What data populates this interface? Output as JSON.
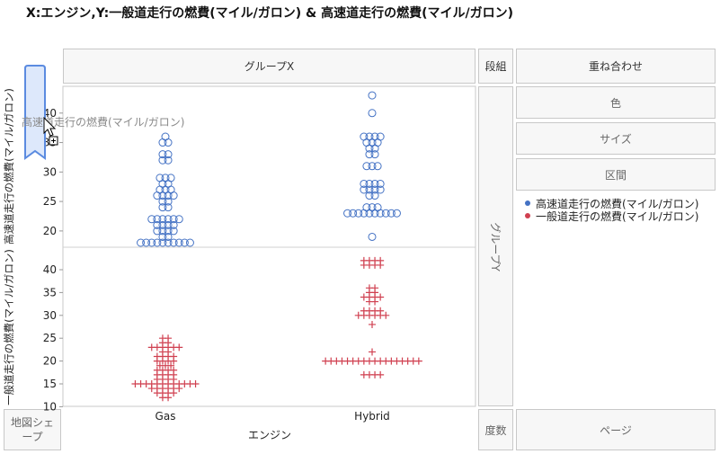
{
  "title": "X:エンジン,Y:一般道走行の燃費(マイル/ガロン) & 高速道走行の燃費(マイル/ガロン)",
  "zones": {
    "group_x": "グループX",
    "wrap": "段組",
    "overlay": "重ね合わせ",
    "color": "色",
    "size": "サイズ",
    "interval": "区間",
    "group_y": "グループY",
    "map_shape": "地図シェープ",
    "freq": "度数",
    "page": "ページ"
  },
  "drag_hint": "高速道走行の燃費(マイル/ガロン)",
  "legend": [
    {
      "label": "高速道走行の燃費(マイル/ガロン)",
      "color": "#4472c4"
    },
    {
      "label": "一般道走行の燃費(マイル/ガロン)",
      "color": "#d04050"
    }
  ],
  "chart_data": {
    "type": "scatter",
    "xlabel": "エンジン",
    "categories": [
      "Gas",
      "Hybrid"
    ],
    "panels": [
      {
        "ylabel": "高速道走行の燃費(マイル/ガロン)",
        "ylim": [
          16,
          44
        ],
        "yticks": [
          20,
          25,
          30,
          35,
          40
        ],
        "color": "#4472c4",
        "marker": "circle",
        "groups": [
          {
            "category": "Gas",
            "values": [
              [
                36,
                1
              ],
              [
                35,
                2
              ],
              [
                33,
                2
              ],
              [
                32,
                2
              ],
              [
                29,
                3
              ],
              [
                28,
                2
              ],
              [
                27,
                3
              ],
              [
                26,
                4
              ],
              [
                25,
                2
              ],
              [
                24,
                2
              ],
              [
                22,
                6
              ],
              [
                21,
                4
              ],
              [
                20,
                4
              ],
              [
                19,
                2
              ],
              [
                18,
                10
              ]
            ]
          },
          {
            "category": "Hybrid",
            "values": [
              [
                43,
                1
              ],
              [
                40,
                1
              ],
              [
                36,
                4
              ],
              [
                35,
                3
              ],
              [
                34,
                2
              ],
              [
                33,
                2
              ],
              [
                31,
                3
              ],
              [
                28,
                4
              ],
              [
                27,
                4
              ],
              [
                26,
                2
              ],
              [
                24,
                3
              ],
              [
                23,
                10
              ],
              [
                19,
                1
              ]
            ]
          }
        ]
      },
      {
        "ylabel": "一般道走行の燃費(マイル/ガロン)",
        "ylim": [
          10,
          44
        ],
        "yticks": [
          10,
          15,
          20,
          25,
          30,
          35,
          40
        ],
        "color": "#d04050",
        "marker": "plus",
        "groups": [
          {
            "category": "Gas",
            "values": [
              [
                25,
                2
              ],
              [
                24,
                2
              ],
              [
                23,
                6
              ],
              [
                22,
                2
              ],
              [
                21,
                4
              ],
              [
                20,
                4
              ],
              [
                19,
                3
              ],
              [
                18,
                4
              ],
              [
                17,
                4
              ],
              [
                16,
                4
              ],
              [
                15,
                12
              ],
              [
                14,
                6
              ],
              [
                13,
                4
              ],
              [
                12,
                2
              ]
            ]
          },
          {
            "category": "Hybrid",
            "values": [
              [
                42,
                4
              ],
              [
                41,
                4
              ],
              [
                36,
                2
              ],
              [
                35,
                2
              ],
              [
                34,
                4
              ],
              [
                33,
                2
              ],
              [
                31,
                4
              ],
              [
                30,
                6
              ],
              [
                28,
                1
              ],
              [
                22,
                1
              ],
              [
                20,
                18
              ],
              [
                17,
                4
              ]
            ]
          }
        ]
      }
    ],
    "legend_position": "right"
  }
}
